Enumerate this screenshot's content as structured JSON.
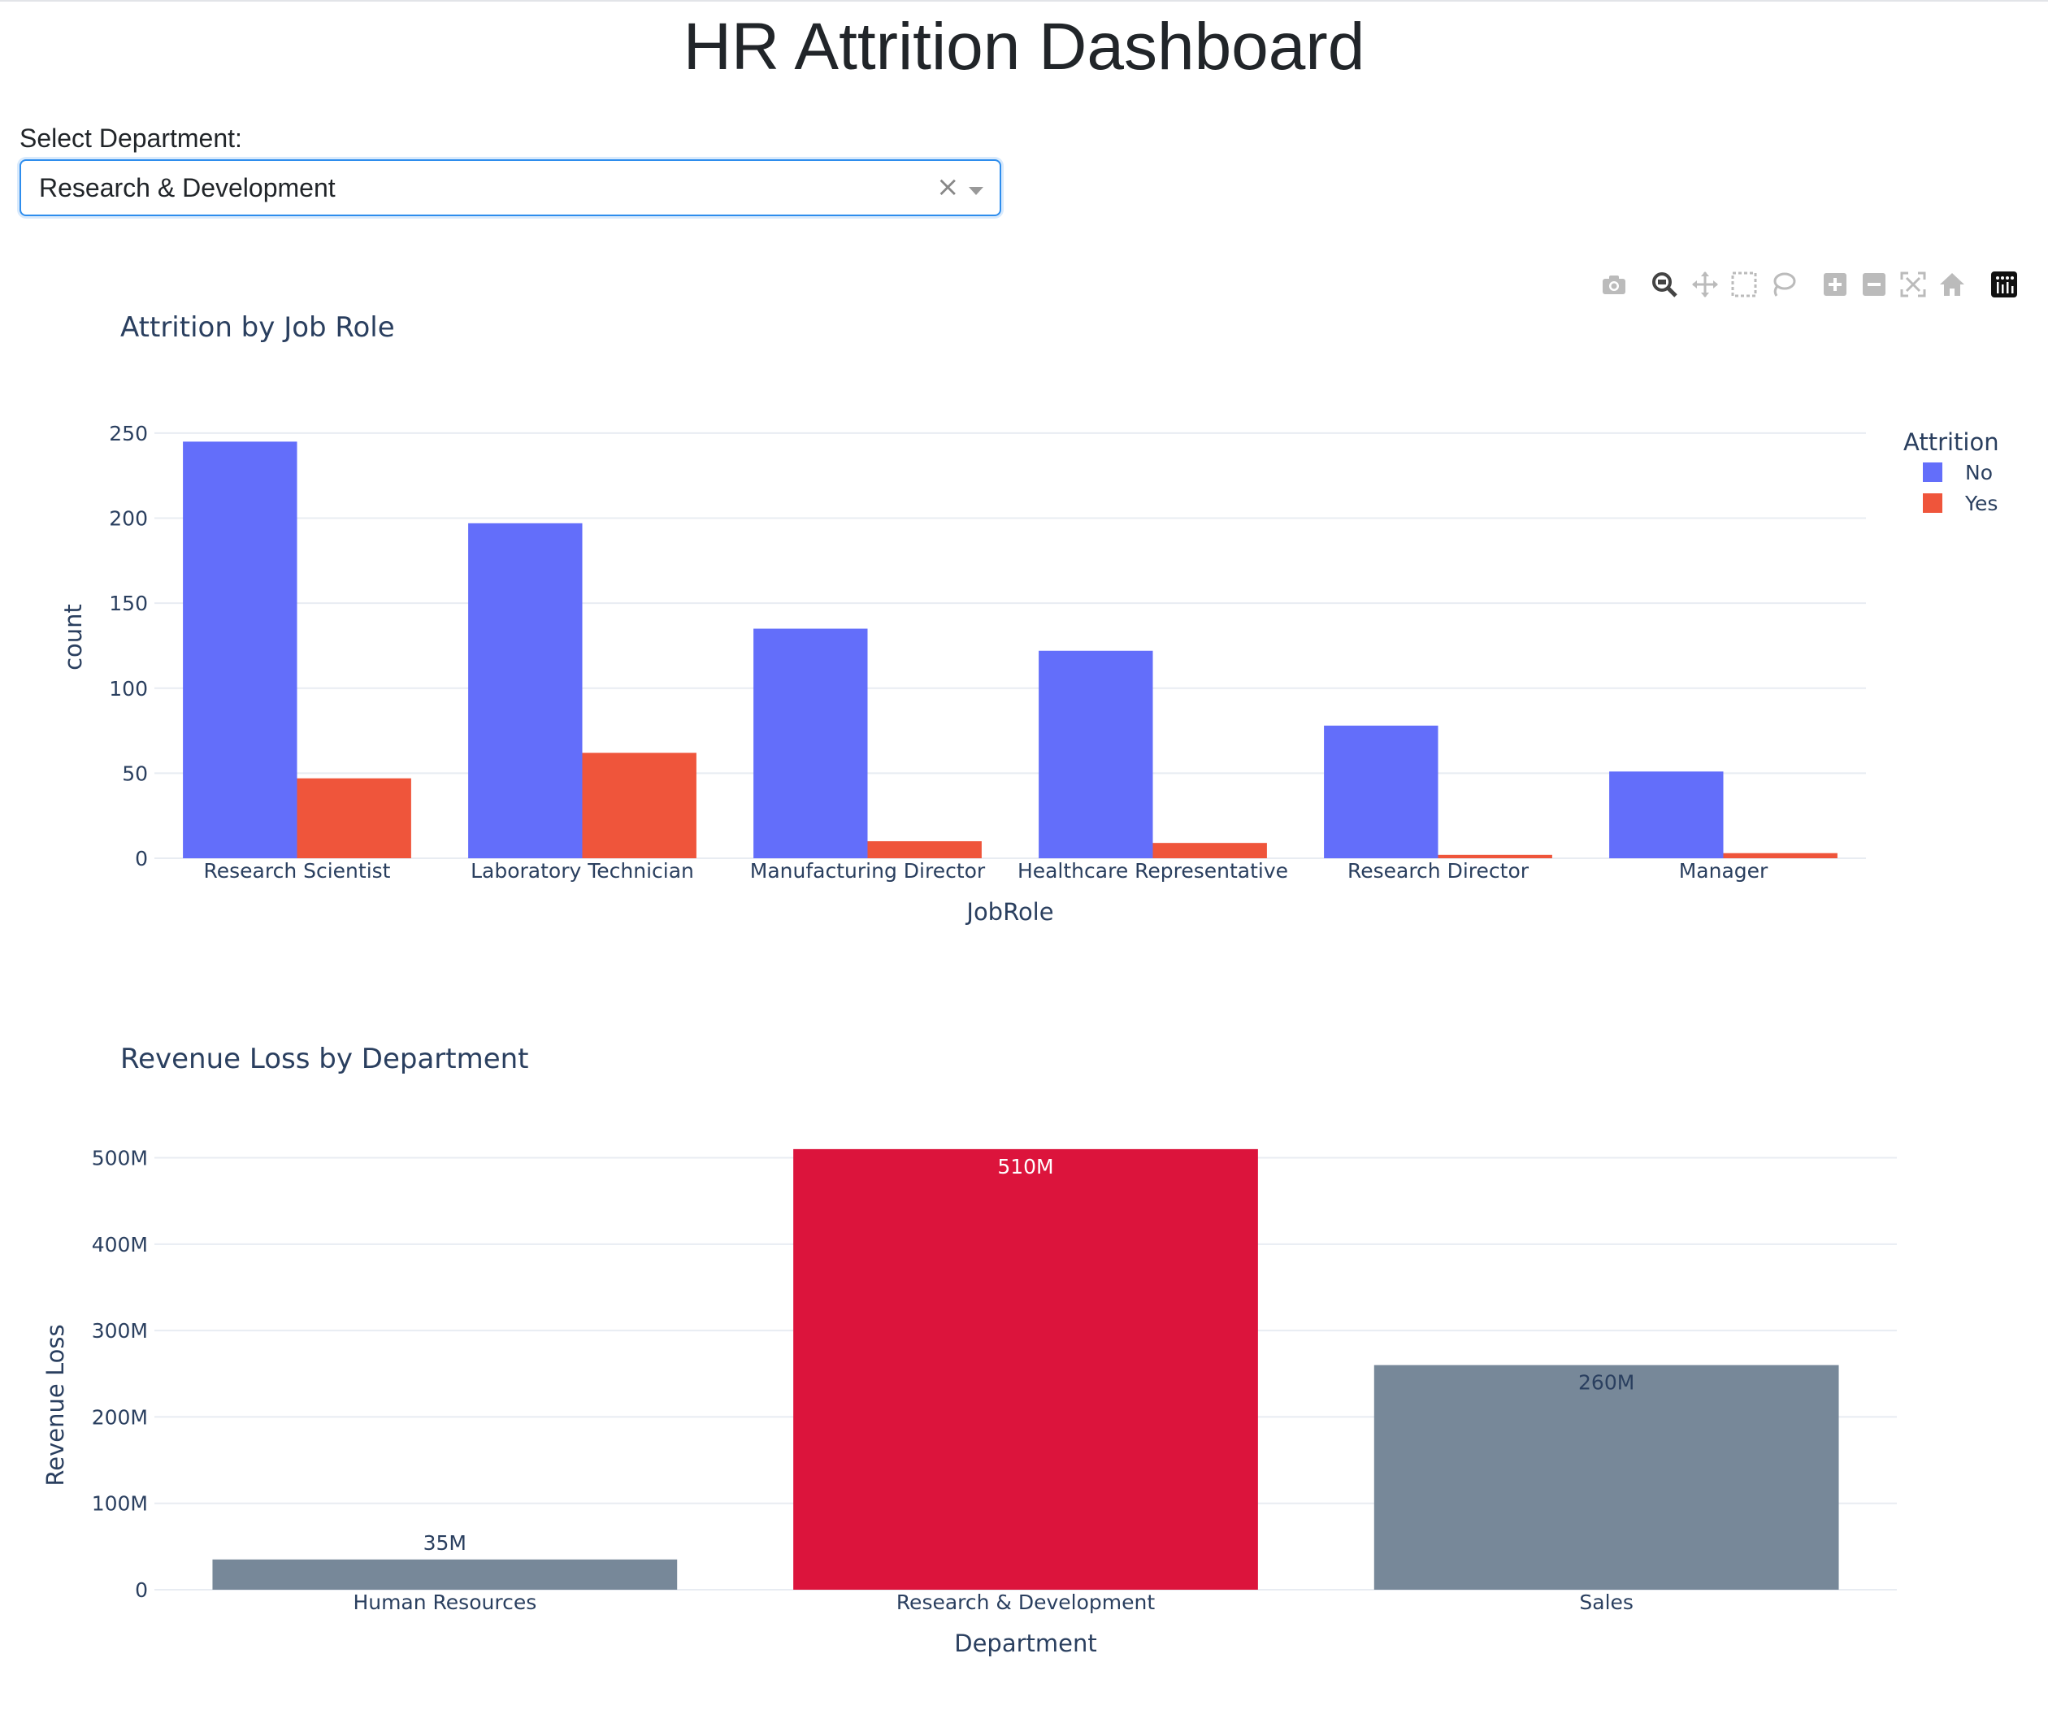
{
  "page_title": "HR Attrition Dashboard",
  "filter": {
    "label": "Select Department:",
    "selected": "Research & Development",
    "clear_symbol": "×"
  },
  "modebar": {
    "icons": [
      "camera-icon",
      "zoom-icon",
      "pan-icon",
      "box-select-icon",
      "lasso-select-icon",
      "zoom-in-icon",
      "zoom-out-icon",
      "autoscale-icon",
      "reset-axes-icon",
      "plotly-logo-icon"
    ]
  },
  "colors": {
    "no": "#636efa",
    "yes": "#ef553b",
    "highlight": "#dc143c",
    "muted": "#778899",
    "grid": "#e8ecf2",
    "text": "#2a3f5f"
  },
  "chart_data": [
    {
      "type": "bar",
      "title": "Attrition by Job Role",
      "xlabel": "JobRole",
      "ylabel": "count",
      "ylim": [
        0,
        260
      ],
      "yticks": [
        0,
        50,
        100,
        150,
        200,
        250
      ],
      "grid": true,
      "legend_title": "Attrition",
      "legend_position": "top-right",
      "categories": [
        "Research Scientist",
        "Laboratory Technician",
        "Manufacturing Director",
        "Healthcare Representative",
        "Research Director",
        "Manager"
      ],
      "series": [
        {
          "name": "No",
          "values": [
            245,
            197,
            135,
            122,
            78,
            51
          ]
        },
        {
          "name": "Yes",
          "values": [
            47,
            62,
            10,
            9,
            2,
            3
          ]
        }
      ]
    },
    {
      "type": "bar",
      "title": "Revenue Loss by Department",
      "xlabel": "Department",
      "ylabel": "Revenue Loss",
      "ylim": [
        0,
        540000000
      ],
      "yticks": [
        0,
        100000000,
        200000000,
        300000000,
        400000000,
        500000000
      ],
      "ytick_labels": [
        "0",
        "100M",
        "200M",
        "300M",
        "400M",
        "500M"
      ],
      "grid": true,
      "categories": [
        "Human Resources",
        "Research & Development",
        "Sales"
      ],
      "values": [
        35000000,
        510000000,
        260000000
      ],
      "data_labels": [
        "35M",
        "510M",
        "260M"
      ],
      "bar_colors": [
        "#778899",
        "#dc143c",
        "#778899"
      ]
    }
  ]
}
